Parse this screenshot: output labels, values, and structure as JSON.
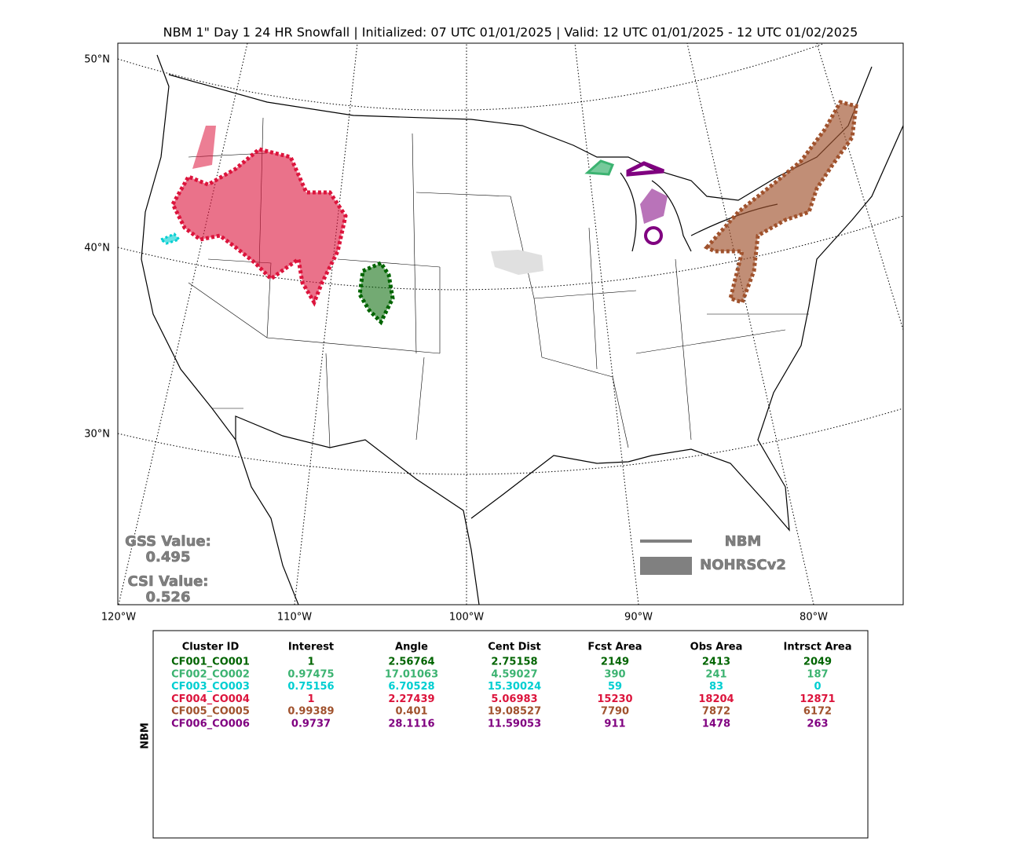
{
  "title": "NBM 1\" Day 1 24 HR Snowfall | Initialized: 07 UTC 01/01/2025 | Valid: 12 UTC 01/01/2025 - 12 UTC 01/02/2025",
  "map": {
    "lat_labels": [
      "50°N",
      "40°N",
      "30°N"
    ],
    "lon_labels": [
      "120°W",
      "110°W",
      "100°W",
      "90°W",
      "80°W"
    ]
  },
  "scores": {
    "gss_label": "GSS Value:",
    "gss_value": 0.495,
    "csi_label": "CSI Value:",
    "csi_value": 0.526
  },
  "legend": [
    "NBM",
    "NOHRSCv2"
  ],
  "table": {
    "side_label": "NBM",
    "columns": [
      "Cluster ID",
      "Interest",
      "Angle",
      "Cent Dist",
      "Fcst Area",
      "Obs Area",
      "Intrsct Area"
    ],
    "row_colors": [
      "#006400",
      "#3cb371",
      "#00ced1",
      "#dc143c",
      "#a0522d",
      "#800080"
    ],
    "rows": [
      [
        "CF001_CO001",
        1,
        2.56764,
        2.75158,
        2149,
        2413,
        2049
      ],
      [
        "CF002_CO002",
        0.97475,
        17.01063,
        4.59027,
        390,
        241,
        187
      ],
      [
        "CF003_CO003",
        0.75156,
        6.70528,
        15.30024,
        59,
        83,
        0
      ],
      [
        "CF004_CO004",
        1,
        2.27439,
        5.06983,
        15230,
        18204,
        12871
      ],
      [
        "CF005_CO005",
        0.99389,
        0.401,
        19.08527,
        7790,
        7872,
        6172
      ],
      [
        "CF006_CO006",
        0.9737,
        28.1116,
        11.59053,
        911,
        1478,
        263
      ]
    ]
  }
}
